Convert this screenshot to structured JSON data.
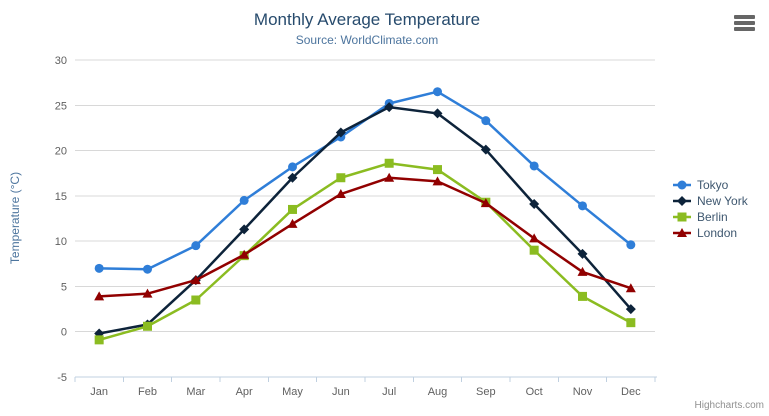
{
  "credits": "Highcharts.com",
  "menu_icon": "hamburger-icon",
  "colors": {
    "title": "#274b6d",
    "subtitle": "#4d759e",
    "axis_title": "#4d759e",
    "axis_labels": "#606060",
    "legend_text": "#3e576f",
    "grid_line": "#d8d8d8",
    "axis_line": "#c0d0e0",
    "credits": "#909090",
    "menu_button": "#666666"
  },
  "chart_data": {
    "type": "line",
    "title": "Monthly Average Temperature",
    "subtitle": "Source: WorldClimate.com",
    "categories": [
      "Jan",
      "Feb",
      "Mar",
      "Apr",
      "May",
      "Jun",
      "Jul",
      "Aug",
      "Sep",
      "Oct",
      "Nov",
      "Dec"
    ],
    "series": [
      {
        "name": "Tokyo",
        "color": "#2f7ed8",
        "marker": "circle",
        "values": [
          7.0,
          6.9,
          9.5,
          14.5,
          18.2,
          21.5,
          25.2,
          26.5,
          23.3,
          18.3,
          13.9,
          9.6
        ]
      },
      {
        "name": "New York",
        "color": "#0d233a",
        "marker": "diamond",
        "values": [
          -0.2,
          0.8,
          5.7,
          11.3,
          17.0,
          22.0,
          24.8,
          24.1,
          20.1,
          14.1,
          8.6,
          2.5
        ]
      },
      {
        "name": "Berlin",
        "color": "#8bbc21",
        "marker": "square",
        "values": [
          -0.9,
          0.6,
          3.5,
          8.4,
          13.5,
          17.0,
          18.6,
          17.9,
          14.3,
          9.0,
          3.9,
          1.0
        ]
      },
      {
        "name": "London",
        "color": "#910000",
        "marker": "triangle",
        "values": [
          3.9,
          4.2,
          5.7,
          8.5,
          11.9,
          15.2,
          17.0,
          16.6,
          14.2,
          10.3,
          6.6,
          4.8
        ]
      }
    ],
    "xlabel": "",
    "ylabel": "Temperature (°C)",
    "ylim": [
      -5,
      30
    ],
    "ytick_step": 5,
    "grid": true,
    "legend_position": "right"
  }
}
